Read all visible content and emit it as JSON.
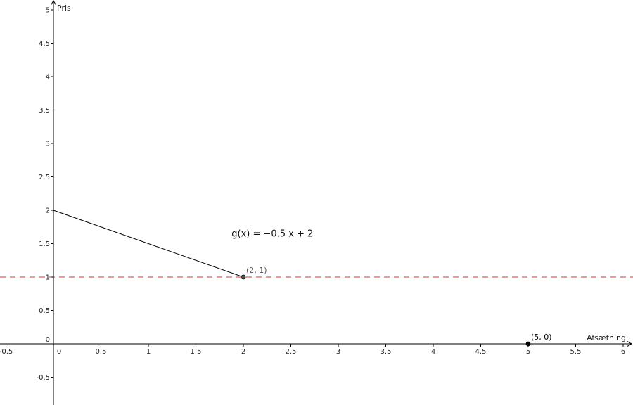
{
  "chart_data": {
    "type": "line",
    "xlabel": "Afsætning",
    "ylabel": "Pris",
    "xlim": [
      -0.55,
      6.1
    ],
    "ylim": [
      -0.95,
      5.12
    ],
    "grid": false,
    "x_ticks": [
      -0.5,
      0,
      0.5,
      1,
      1.5,
      2,
      2.5,
      3,
      3.5,
      4,
      4.5,
      5,
      5.5,
      6
    ],
    "x_tick_labels": [
      "-0.5",
      "0",
      "0.5",
      "1",
      "1.5",
      "2",
      "2.5",
      "3",
      "3.5",
      "4",
      "4.5",
      "5",
      "5.5",
      "6"
    ],
    "y_ticks": [
      -0.5,
      0,
      0.5,
      1,
      1.5,
      2,
      2.5,
      3,
      3.5,
      4,
      4.5,
      5
    ],
    "y_tick_labels": [
      "-0.5",
      "0",
      "0.5",
      "1",
      "1.5",
      "2",
      "2.5",
      "3",
      "3.5",
      "4",
      "4.5",
      "5"
    ],
    "series": [
      {
        "type": "line",
        "x": [
          0,
          2
        ],
        "y": [
          2,
          1
        ],
        "color": "#000000"
      }
    ],
    "reference_lines": [
      {
        "orientation": "horizontal",
        "y": 1,
        "style": "dashed",
        "color": "#e03030"
      }
    ],
    "points": [
      {
        "x": 2,
        "y": 1,
        "label": "(2, 1)",
        "fill": "#555555",
        "label_color": "#555555"
      },
      {
        "x": 5,
        "y": 0,
        "label": "(5, 0)",
        "fill": "#000000",
        "label_color": "#000000"
      }
    ],
    "annotations": [
      {
        "text": "g(x)  =  −0.5 x + 2",
        "x": 2.35,
        "y": 1.65
      }
    ]
  }
}
